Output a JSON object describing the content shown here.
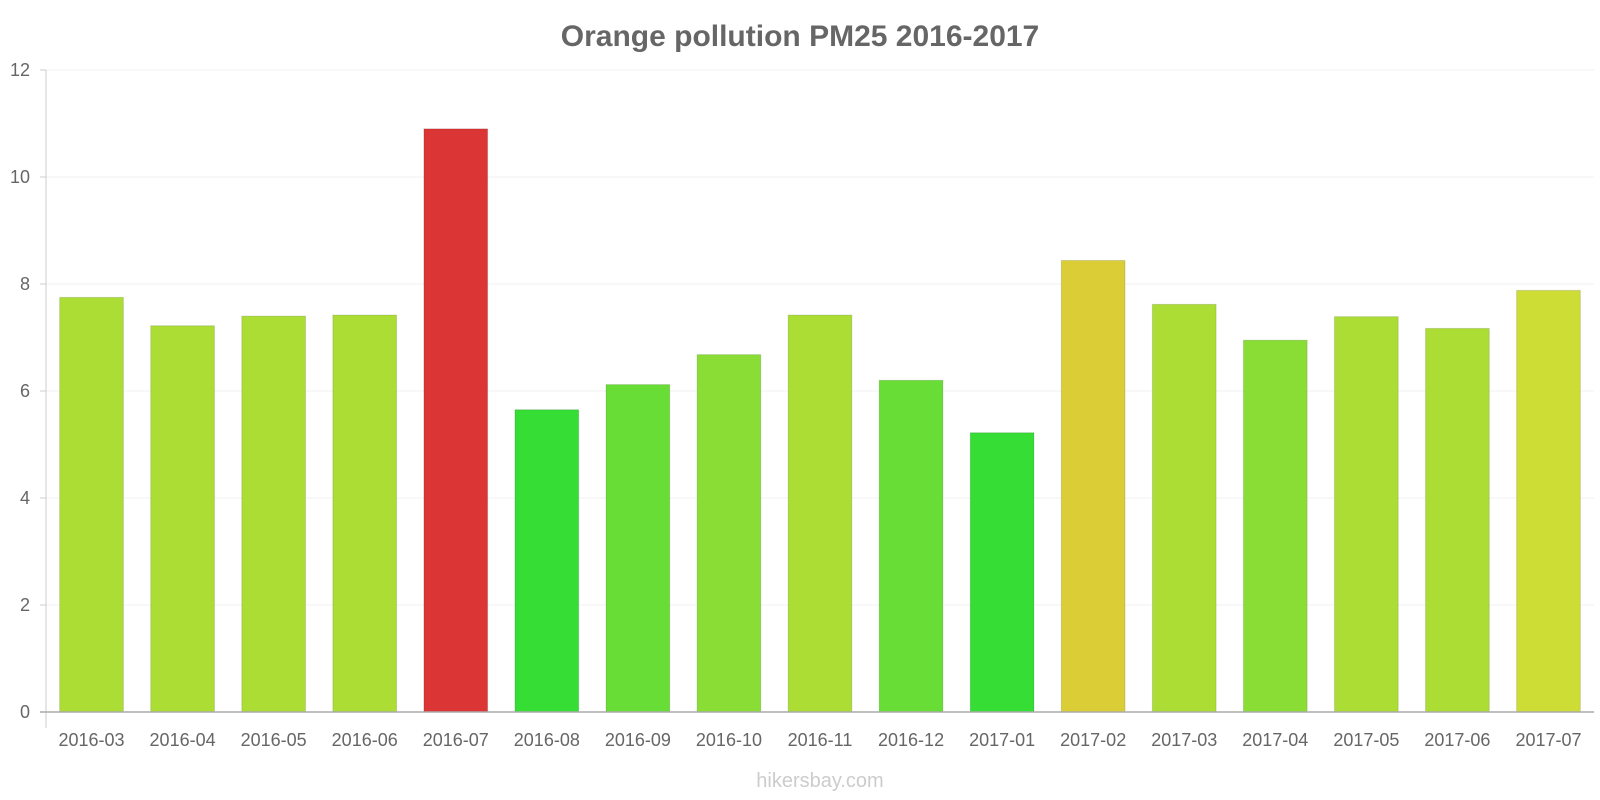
{
  "chart_data": {
    "type": "bar",
    "title": "Orange pollution PM25 2016-2017",
    "xlabel": "",
    "ylabel": "",
    "ylim": [
      0,
      12
    ],
    "yticks": [
      0,
      2,
      4,
      6,
      8,
      10,
      12
    ],
    "grid": true,
    "categories": [
      "2016-03",
      "2016-04",
      "2016-05",
      "2016-06",
      "2016-07",
      "2016-08",
      "2016-09",
      "2016-10",
      "2016-11",
      "2016-12",
      "2017-01",
      "2017-02",
      "2017-03",
      "2017-04",
      "2017-05",
      "2017-06",
      "2017-07"
    ],
    "values": [
      7.75,
      7.22,
      7.4,
      7.42,
      10.9,
      5.65,
      6.12,
      6.68,
      7.42,
      6.2,
      5.22,
      8.44,
      7.62,
      6.95,
      7.39,
      7.17,
      7.88
    ],
    "colors": [
      "#abdd35",
      "#abdd35",
      "#abdd35",
      "#abdd35",
      "#db3535",
      "#35dd35",
      "#67dd35",
      "#89dd35",
      "#abdd35",
      "#67dd35",
      "#35dd35",
      "#dbcd35",
      "#abdd35",
      "#89dd35",
      "#abdd35",
      "#abdd35",
      "#cddd35"
    ]
  },
  "watermark": "hikersbay.com"
}
